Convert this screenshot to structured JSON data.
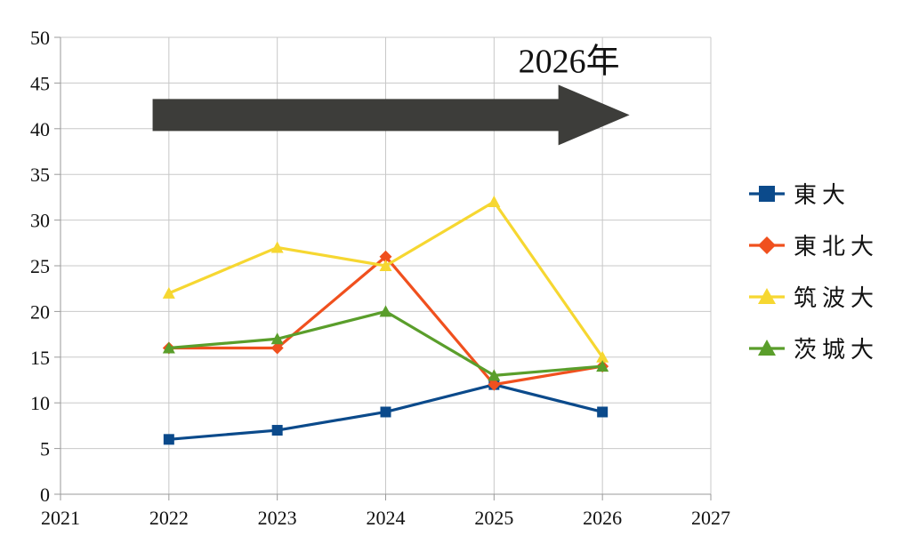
{
  "chart_data": {
    "type": "line",
    "title": "",
    "xlabel": "",
    "ylabel": "",
    "x": [
      2022,
      2023,
      2024,
      2025,
      2026
    ],
    "xlim": [
      2021,
      2027
    ],
    "ylim": [
      0,
      50
    ],
    "x_ticks": [
      2021,
      2022,
      2023,
      2024,
      2025,
      2026,
      2027
    ],
    "y_ticks": [
      0,
      5,
      10,
      15,
      20,
      25,
      30,
      35,
      40,
      45,
      50
    ],
    "grid": true,
    "legend_position": "right",
    "series": [
      {
        "name": "東大",
        "values": [
          6,
          7,
          9,
          12,
          9
        ],
        "color": "#0b4a8b",
        "marker": "square"
      },
      {
        "name": "東北大",
        "values": [
          16,
          16,
          26,
          12,
          14
        ],
        "color": "#f0501e",
        "marker": "diamond"
      },
      {
        "name": "筑波大",
        "values": [
          22,
          27,
          25,
          32,
          15
        ],
        "color": "#f6d731",
        "marker": "triangle"
      },
      {
        "name": "茨城大",
        "values": [
          16,
          17,
          20,
          13,
          14
        ],
        "color": "#5a9e2b",
        "marker": "triangle"
      }
    ],
    "annotation": {
      "text": "2026年",
      "arrow_color": "#3d3d3a",
      "arrow_from_x": 2021.85,
      "arrow_to_x": 2026.25,
      "arrow_y": 41.5
    }
  }
}
